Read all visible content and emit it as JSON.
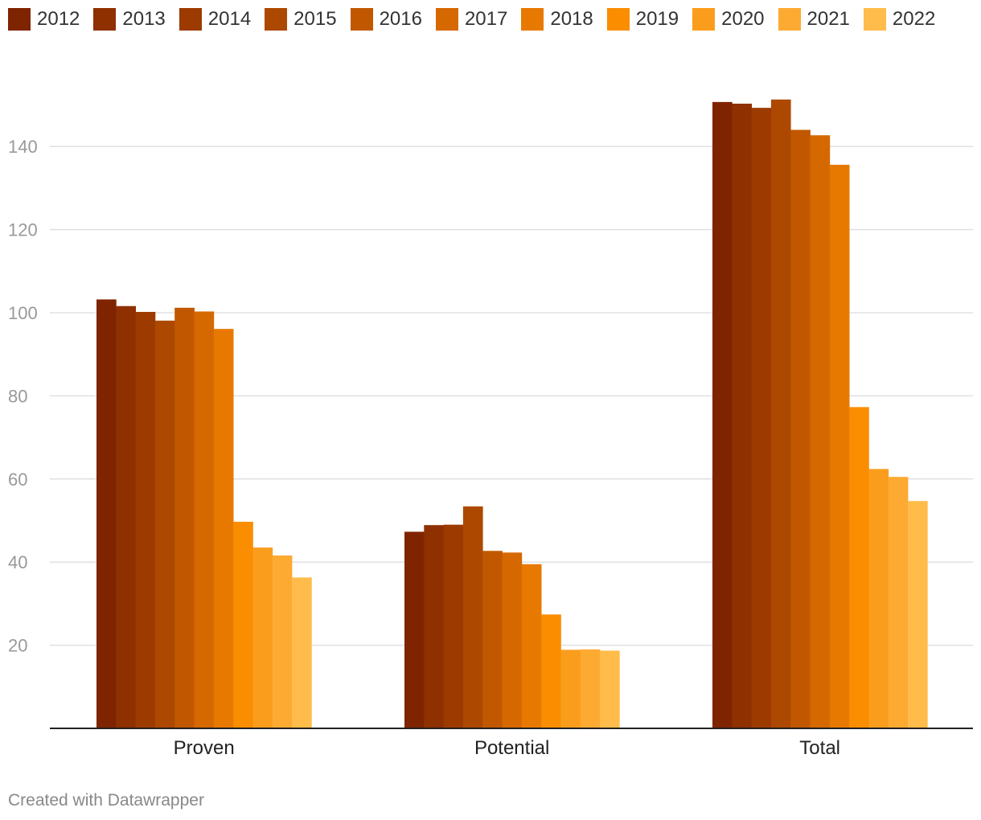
{
  "chart_data": {
    "type": "bar",
    "categories": [
      "Proven",
      "Potential",
      "Total"
    ],
    "series": [
      {
        "name": "2012",
        "color": "#7f2400",
        "values": [
          103.2,
          47.3,
          150.7
        ]
      },
      {
        "name": "2013",
        "color": "#8e3000",
        "values": [
          101.6,
          48.9,
          150.3
        ]
      },
      {
        "name": "2014",
        "color": "#9d3a00",
        "values": [
          100.2,
          49.0,
          149.3
        ]
      },
      {
        "name": "2015",
        "color": "#ad4800",
        "values": [
          98.1,
          53.4,
          151.3
        ]
      },
      {
        "name": "2016",
        "color": "#c15800",
        "values": [
          101.2,
          42.7,
          144.0
        ]
      },
      {
        "name": "2017",
        "color": "#d66800",
        "values": [
          100.3,
          42.3,
          142.7
        ]
      },
      {
        "name": "2018",
        "color": "#e87900",
        "values": [
          96.1,
          39.5,
          135.6
        ]
      },
      {
        "name": "2019",
        "color": "#fa8d00",
        "values": [
          49.7,
          27.4,
          77.3
        ]
      },
      {
        "name": "2020",
        "color": "#fb9d1c",
        "values": [
          43.5,
          18.9,
          62.4
        ]
      },
      {
        "name": "2021",
        "color": "#fdaa33",
        "values": [
          41.6,
          19.0,
          60.5
        ]
      },
      {
        "name": "2022",
        "color": "#ffbc4a",
        "values": [
          36.3,
          18.7,
          54.7
        ]
      }
    ],
    "yticks": [
      20,
      40,
      60,
      80,
      100,
      120,
      140
    ],
    "ylim": [
      0,
      160
    ],
    "grid": true,
    "legend_position": "top-left",
    "title": "",
    "xlabel": "",
    "ylabel": ""
  },
  "footer": "Created with Datawrapper"
}
